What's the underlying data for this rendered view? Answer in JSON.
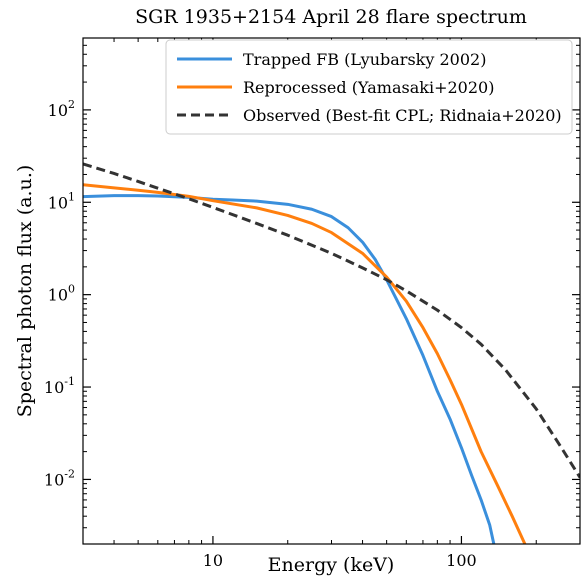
{
  "chart_data": {
    "type": "line",
    "title": "SGR 1935+2154 April 28 flare spectrum",
    "xlabel": "Energy  (keV)",
    "ylabel": "Spectral photon flux  (a.u.)",
    "x_scale": "log",
    "y_scale": "log",
    "xlim": [
      3,
      300
    ],
    "ylim": [
      0.002,
      600
    ],
    "x_ticks": [
      {
        "value": 10,
        "label": "10"
      },
      {
        "value": 100,
        "label": "100"
      }
    ],
    "y_ticks": [
      {
        "value": 0.01,
        "base": "10",
        "exp": "-2"
      },
      {
        "value": 0.1,
        "base": "10",
        "exp": "-1"
      },
      {
        "value": 1,
        "base": "10",
        "exp": "0"
      },
      {
        "value": 10,
        "base": "10",
        "exp": "1"
      },
      {
        "value": 100,
        "base": "10",
        "exp": "2"
      }
    ],
    "grid": false,
    "legend_position": "top-right",
    "series": [
      {
        "name": "Trapped FB (Lyubarsky 2002)",
        "color": "#3a8fdc",
        "dash": "solid",
        "points": [
          [
            3,
            11.5
          ],
          [
            4,
            11.8
          ],
          [
            5,
            11.8
          ],
          [
            6,
            11.7
          ],
          [
            8,
            11.3
          ],
          [
            10,
            10.8
          ],
          [
            12,
            10.6
          ],
          [
            15,
            10.3
          ],
          [
            20,
            9.5
          ],
          [
            25,
            8.4
          ],
          [
            30,
            7.0
          ],
          [
            35,
            5.3
          ],
          [
            40,
            3.7
          ],
          [
            45,
            2.4
          ],
          [
            50,
            1.45
          ],
          [
            60,
            0.55
          ],
          [
            70,
            0.22
          ],
          [
            80,
            0.09
          ],
          [
            90,
            0.045
          ],
          [
            100,
            0.022
          ],
          [
            110,
            0.011
          ],
          [
            120,
            0.006
          ],
          [
            130,
            0.0032
          ],
          [
            135,
            0.002
          ]
        ]
      },
      {
        "name": "Reprocessed (Yamasaki+2020)",
        "color": "#ff7f0e",
        "dash": "solid",
        "points": [
          [
            3,
            15.5
          ],
          [
            4,
            14.3
          ],
          [
            5,
            13.5
          ],
          [
            6,
            12.8
          ],
          [
            8,
            11.6
          ],
          [
            10,
            10.4
          ],
          [
            15,
            8.7
          ],
          [
            20,
            7.2
          ],
          [
            25,
            5.9
          ],
          [
            30,
            4.7
          ],
          [
            40,
            2.8
          ],
          [
            50,
            1.55
          ],
          [
            60,
            0.85
          ],
          [
            70,
            0.44
          ],
          [
            80,
            0.23
          ],
          [
            90,
            0.12
          ],
          [
            100,
            0.065
          ],
          [
            120,
            0.02
          ],
          [
            140,
            0.0085
          ],
          [
            160,
            0.004
          ],
          [
            180,
            0.002
          ]
        ]
      },
      {
        "name": "Observed (Best-fit CPL; Ridnaia+2020)",
        "color": "#333333",
        "dash": "dashed",
        "points": [
          [
            3,
            26
          ],
          [
            4,
            20.5
          ],
          [
            5,
            16.8
          ],
          [
            6,
            14.2
          ],
          [
            8,
            10.9
          ],
          [
            10,
            8.8
          ],
          [
            15,
            5.9
          ],
          [
            20,
            4.4
          ],
          [
            30,
            2.8
          ],
          [
            40,
            1.95
          ],
          [
            50,
            1.45
          ],
          [
            60,
            1.1
          ],
          [
            80,
            0.68
          ],
          [
            100,
            0.44
          ],
          [
            120,
            0.29
          ],
          [
            150,
            0.155
          ],
          [
            200,
            0.058
          ],
          [
            250,
            0.023
          ],
          [
            300,
            0.0105
          ]
        ]
      }
    ]
  }
}
